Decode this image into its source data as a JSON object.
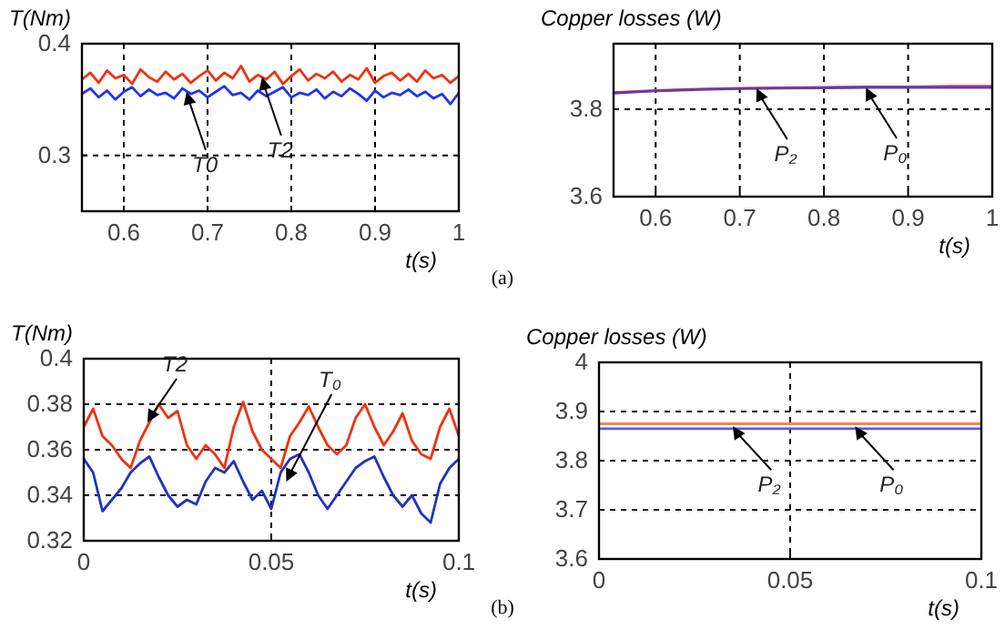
{
  "chart_data": [
    {
      "type": "line",
      "ylabel": "T(Nm)",
      "xlabel": "t(s)",
      "xlim": [
        0.55,
        1
      ],
      "xticks": [
        0.6,
        0.7,
        0.8,
        0.9,
        1
      ],
      "ylim": [
        0.25,
        0.4
      ],
      "yticks": [
        0.3,
        0.4
      ],
      "grid": true,
      "x": [
        0.55,
        0.56,
        0.57,
        0.58,
        0.59,
        0.6,
        0.61,
        0.62,
        0.63,
        0.64,
        0.65,
        0.66,
        0.67,
        0.68,
        0.69,
        0.7,
        0.71,
        0.72,
        0.73,
        0.74,
        0.75,
        0.76,
        0.77,
        0.78,
        0.79,
        0.8,
        0.81,
        0.82,
        0.83,
        0.84,
        0.85,
        0.86,
        0.87,
        0.88,
        0.89,
        0.9,
        0.91,
        0.92,
        0.93,
        0.94,
        0.95,
        0.96,
        0.97,
        0.98,
        0.99,
        1
      ],
      "series": [
        {
          "color": "#2233ee",
          "values": [
            0.355,
            0.36,
            0.352,
            0.358,
            0.35,
            0.357,
            0.361,
            0.353,
            0.359,
            0.354,
            0.356,
            0.351,
            0.36,
            0.355,
            0.358,
            0.352,
            0.357,
            0.362,
            0.354,
            0.356,
            0.35,
            0.358,
            0.353,
            0.357,
            0.361,
            0.352,
            0.356,
            0.354,
            0.359,
            0.351,
            0.357,
            0.353,
            0.36,
            0.355,
            0.349,
            0.358,
            0.352,
            0.356,
            0.354,
            0.359,
            0.353,
            0.357,
            0.351,
            0.355,
            0.346,
            0.356
          ]
        },
        {
          "color": "#ee3311",
          "values": [
            0.368,
            0.374,
            0.365,
            0.376,
            0.369,
            0.372,
            0.364,
            0.377,
            0.37,
            0.366,
            0.375,
            0.368,
            0.373,
            0.365,
            0.371,
            0.376,
            0.367,
            0.374,
            0.369,
            0.38,
            0.366,
            0.372,
            0.368,
            0.375,
            0.364,
            0.371,
            0.377,
            0.367,
            0.373,
            0.369,
            0.375,
            0.366,
            0.372,
            0.368,
            0.378,
            0.365,
            0.371,
            0.374,
            0.367,
            0.373,
            0.366,
            0.376,
            0.369,
            0.372,
            0.365,
            0.371
          ]
        }
      ],
      "annotations": [
        {
          "text": "T0",
          "x": 0.675,
          "y": 0.357
        },
        {
          "text": "T2",
          "x": 0.765,
          "y": 0.37
        },
        "(a)"
      ]
    },
    {
      "type": "line",
      "ylabel": "Copper losses (W)",
      "xlabel": "t(s)",
      "xlim": [
        0.55,
        1
      ],
      "xticks": [
        0.6,
        0.7,
        0.8,
        0.9,
        1
      ],
      "ylim": [
        3.6,
        3.95
      ],
      "yticks": [
        3.6,
        3.8
      ],
      "grid": true,
      "x": [
        0.55,
        0.6,
        0.65,
        0.7,
        0.75,
        0.8,
        0.85,
        0.9,
        0.95,
        1
      ],
      "series": [
        {
          "color": "#d04a6a",
          "values": [
            3.838,
            3.843,
            3.846,
            3.848,
            3.849,
            3.85,
            3.851,
            3.851,
            3.853,
            3.853
          ]
        },
        {
          "color": "#6a3aa0",
          "values": [
            3.837,
            3.842,
            3.845,
            3.847,
            3.848,
            3.849,
            3.85,
            3.85,
            3.85,
            3.85
          ]
        }
      ],
      "annotations": [
        {
          "text": "P₂",
          "x": 0.72,
          "y": 3.848
        },
        {
          "text": "P₀",
          "x": 0.85,
          "y": 3.85
        }
      ]
    },
    {
      "type": "line",
      "ylabel": "T(Nm)",
      "xlabel": "t(s)",
      "xlim": [
        0,
        0.1
      ],
      "xticks": [
        0,
        0.05,
        0.1
      ],
      "ylim": [
        0.32,
        0.4
      ],
      "yticks": [
        0.32,
        0.34,
        0.36,
        0.38,
        0.4
      ],
      "grid": true,
      "x": [
        0,
        0.0025,
        0.005,
        0.0075,
        0.01,
        0.0125,
        0.015,
        0.0175,
        0.02,
        0.0225,
        0.025,
        0.0275,
        0.03,
        0.0325,
        0.035,
        0.0375,
        0.04,
        0.0425,
        0.045,
        0.0475,
        0.05,
        0.0525,
        0.055,
        0.0575,
        0.06,
        0.0625,
        0.065,
        0.0675,
        0.07,
        0.0725,
        0.075,
        0.0775,
        0.08,
        0.0825,
        0.085,
        0.0875,
        0.09,
        0.0925,
        0.095,
        0.0975,
        0.1
      ],
      "series": [
        {
          "color": "#ee3311",
          "values": [
            0.37,
            0.378,
            0.366,
            0.362,
            0.356,
            0.352,
            0.364,
            0.372,
            0.38,
            0.374,
            0.377,
            0.362,
            0.356,
            0.362,
            0.358,
            0.352,
            0.37,
            0.381,
            0.368,
            0.36,
            0.356,
            0.352,
            0.366,
            0.372,
            0.379,
            0.37,
            0.362,
            0.358,
            0.362,
            0.374,
            0.38,
            0.37,
            0.362,
            0.368,
            0.376,
            0.364,
            0.358,
            0.356,
            0.37,
            0.378,
            0.366
          ]
        },
        {
          "color": "#2233bb",
          "values": [
            0.356,
            0.35,
            0.333,
            0.338,
            0.343,
            0.35,
            0.354,
            0.357,
            0.348,
            0.34,
            0.335,
            0.338,
            0.336,
            0.346,
            0.352,
            0.35,
            0.355,
            0.346,
            0.338,
            0.342,
            0.334,
            0.35,
            0.356,
            0.358,
            0.35,
            0.34,
            0.334,
            0.34,
            0.346,
            0.352,
            0.355,
            0.357,
            0.348,
            0.34,
            0.335,
            0.34,
            0.332,
            0.328,
            0.345,
            0.352,
            0.356
          ]
        }
      ],
      "annotations": [
        {
          "text": "T2",
          "x": 0.017,
          "y": 0.372
        },
        {
          "text": "T₀",
          "x": 0.054,
          "y": 0.346
        },
        "(b)"
      ]
    },
    {
      "type": "line",
      "ylabel": "Copper losses (W)",
      "xlabel": "t(s)",
      "xlim": [
        0,
        0.1
      ],
      "xticks": [
        0,
        0.05,
        0.1
      ],
      "ylim": [
        3.6,
        4
      ],
      "yticks": [
        3.6,
        3.7,
        3.8,
        3.9,
        4
      ],
      "grid": true,
      "x": [
        0,
        0.1
      ],
      "series": [
        {
          "color": "#f08a50",
          "values": [
            3.875,
            3.875
          ]
        },
        {
          "color": "#5a5ae0",
          "values": [
            3.865,
            3.865
          ]
        }
      ],
      "annotations": [
        {
          "text": "P₂",
          "x": 0.035,
          "y": 3.87
        },
        {
          "text": "P₀",
          "x": 0.067,
          "y": 3.87
        }
      ]
    }
  ]
}
